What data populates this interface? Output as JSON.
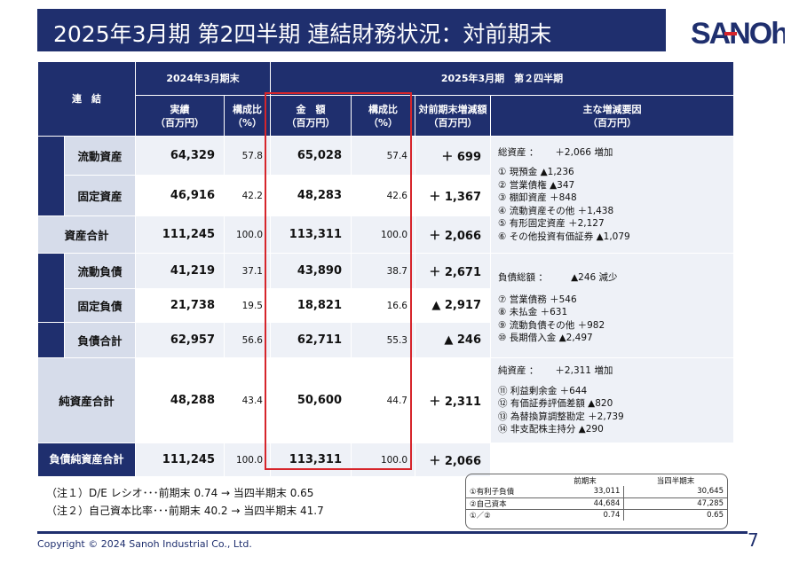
{
  "title": "2025年3月期 第2四半期 連結財務状況：対前期末",
  "logo": {
    "text": "SANOh",
    "color": "#1f2f6e",
    "accent": "#d6252b"
  },
  "colors": {
    "navy": "#1f2f6e",
    "light": "#eef1f7",
    "cat": "#d6dcea",
    "red": "#d6252b"
  },
  "header": {
    "corner": "連　結",
    "prev_period": "2024年3月期末",
    "cur_period": "2025年3月期　第２四半期",
    "prev_actual": "実績",
    "prev_ratio": "構成比",
    "cur_amount": "金　額",
    "cur_ratio": "構成比",
    "diff": "対前期末増減額",
    "factors": "主な増減要因",
    "unit_oku": "（百万円）",
    "unit_pct": "（%）",
    "unit_oku2": "（百万円）",
    "unit_pct2": "（%）",
    "unit_oku3": "（百万円）",
    "unit_oku4": "（百万円）"
  },
  "rows": {
    "current_assets": {
      "label": "流動資産",
      "prev": "64,329",
      "prev_pct": "57.8",
      "cur": "65,028",
      "cur_pct": "57.4",
      "diff": "＋ 699"
    },
    "fixed_assets": {
      "label": "固定資産",
      "prev": "46,916",
      "prev_pct": "42.2",
      "cur": "48,283",
      "cur_pct": "42.6",
      "diff": "＋ 1,367"
    },
    "total_assets": {
      "label": "資産合計",
      "prev": "111,245",
      "prev_pct": "100.0",
      "cur": "113,311",
      "cur_pct": "100.0",
      "diff": "＋ 2,066"
    },
    "current_liab": {
      "label": "流動負債",
      "prev": "41,219",
      "prev_pct": "37.1",
      "cur": "43,890",
      "cur_pct": "38.7",
      "diff": "＋ 2,671"
    },
    "fixed_liab": {
      "label": "固定負債",
      "prev": "21,738",
      "prev_pct": "19.5",
      "cur": "18,821",
      "cur_pct": "16.6",
      "diff": "▲ 2,917"
    },
    "total_liab": {
      "label": "負債合計",
      "prev": "62,957",
      "prev_pct": "56.6",
      "cur": "62,711",
      "cur_pct": "55.3",
      "diff": "▲ 246"
    },
    "net_assets": {
      "label": "純資産合計",
      "prev": "48,288",
      "prev_pct": "43.4",
      "cur": "50,600",
      "cur_pct": "44.7",
      "diff": "＋ 2,311"
    },
    "total_liab_net": {
      "label": "負債純資産合計",
      "prev": "111,245",
      "prev_pct": "100.0",
      "cur": "113,311",
      "cur_pct": "100.0",
      "diff": "＋ 2,066"
    }
  },
  "factors": {
    "assets": [
      "総資産 ：　　 ＋2,066 増加",
      "",
      "① 現預金 ▲1,236",
      "② 営業債権 ▲347",
      "③ 棚卸資産 ＋848",
      "④ 流動資産その他 ＋1,438",
      "⑤ 有形固定資産 ＋2,127",
      "⑥ その他投資有価証券 ▲1,079"
    ],
    "liabilities": [
      "負債総額 ：　　　▲246 減少",
      "",
      "⑦ 営業債務 ＋546",
      "⑧ 未払金 ＋631",
      "⑨ 流動負債その他 ＋982",
      "⑩ 長期借入金 ▲2,497"
    ],
    "net": [
      "純資産 ：　　 ＋2,311 増加",
      "",
      "⑪ 利益剰余金 ＋644",
      "⑫ 有価証券評価差額 ▲820",
      "⑬ 為替換算調整勘定 ＋2,739",
      "⑭ 非支配株主持分 ▲290"
    ]
  },
  "notes": {
    "note1": "（注１）D/E レシオ･･･前期末 0.74 → 当四半期末 0.65",
    "note2": "（注２）自己資本比率･･･前期末 40.2 → 当四半期末 41.7"
  },
  "mini_table": {
    "col_prev": "前期末",
    "col_cur": "当四半期末",
    "rows": [
      {
        "label": "①有利子負債",
        "prev": "33,011",
        "cur": "30,645"
      },
      {
        "label": "②自己資本",
        "prev": "44,684",
        "cur": "47,285"
      },
      {
        "label": "①／②",
        "prev": "0.74",
        "cur": "0.65"
      }
    ]
  },
  "footer": {
    "copyright": "Copyright © 2024 Sanoh Industrial Co., Ltd.",
    "page": "7"
  }
}
